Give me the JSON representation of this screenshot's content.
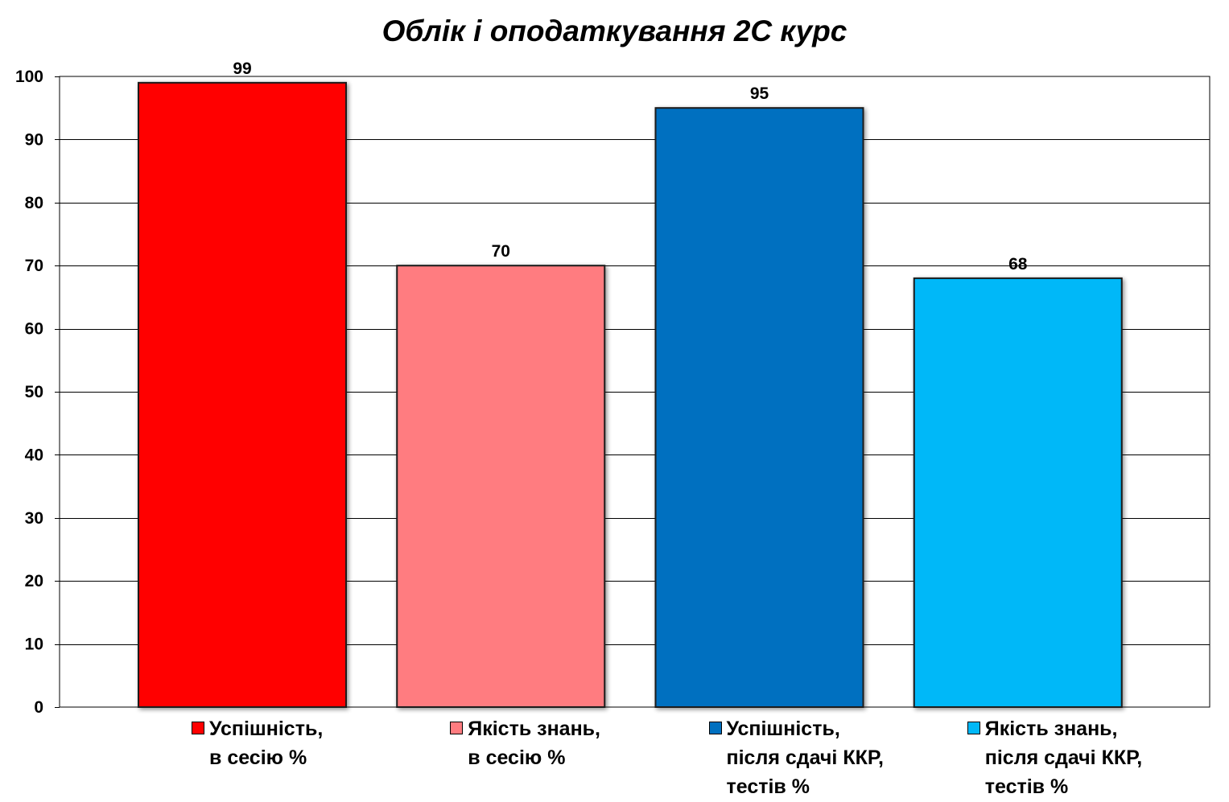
{
  "chart_data": {
    "type": "bar",
    "title": "Облік і оподаткування 2С курс",
    "ylim": [
      0,
      100
    ],
    "yticks": [
      0,
      10,
      20,
      30,
      40,
      50,
      60,
      70,
      80,
      90,
      100
    ],
    "grid": true,
    "legend_placement": "bottom",
    "series": [
      {
        "legend_lines": [
          "Успішність,",
          "в сесію %"
        ],
        "value": 99,
        "color": "#ff0000"
      },
      {
        "legend_lines": [
          "Якість знань,",
          "в сесію %"
        ],
        "value": 70,
        "color": "#ff7c80"
      },
      {
        "legend_lines": [
          "Успішність,",
          "після сдачі ККР,",
          "тестів %"
        ],
        "value": 95,
        "color": "#0070c0"
      },
      {
        "legend_lines": [
          "Якість знань,",
          "після сдачі ККР,",
          "тестів %"
        ],
        "value": 68,
        "color": "#00b8f8"
      }
    ]
  }
}
